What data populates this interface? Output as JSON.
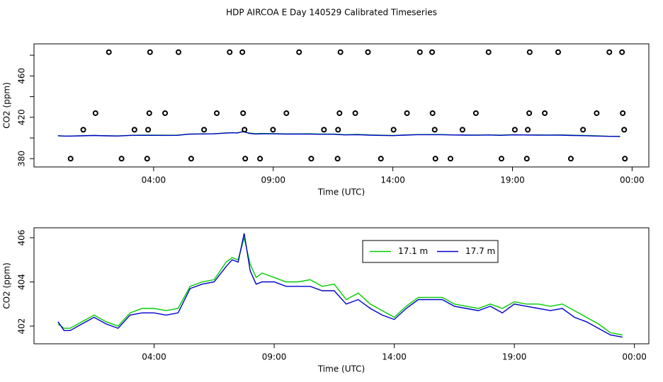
{
  "chart_data": [
    {
      "type": "scatter",
      "title": "HDP AIRCOA E  Day 140529  Calibrated Timeseries",
      "x_label": "Time (UTC)",
      "y_label": "CO2 (ppm)",
      "color": "#000000",
      "x": [
        2.13,
        3.85,
        5.04,
        7.18,
        7.71,
        10.08,
        11.81,
        12.96,
        15.13,
        15.64,
        18.0,
        19.72,
        20.91,
        23.05,
        23.58,
        1.57,
        3.82,
        4.48,
        6.64,
        7.74,
        9.55,
        11.77,
        12.43,
        14.59,
        15.66,
        17.47,
        19.7,
        20.35,
        22.52,
        23.61,
        1.06,
        3.2,
        3.77,
        6.11,
        7.8,
        8.99,
        11.12,
        11.71,
        14.03,
        15.75,
        16.91,
        19.1,
        19.64,
        21.95,
        23.67,
        0.53,
        2.66,
        3.73,
        5.57,
        7.83,
        8.45,
        10.59,
        11.69,
        13.5,
        15.78,
        16.41,
        18.54,
        19.6,
        21.44,
        23.7
      ],
      "values": [
        483,
        483,
        483,
        483,
        483,
        483,
        483,
        483,
        483,
        483,
        483,
        483,
        483,
        483,
        483,
        424,
        424,
        424,
        424,
        424,
        424,
        424,
        424,
        424,
        424,
        424,
        424,
        424,
        424,
        424,
        408,
        408,
        408,
        408,
        408,
        408,
        408,
        408,
        408,
        408,
        408,
        408,
        408,
        408,
        408,
        380,
        380,
        380,
        380,
        380,
        380,
        380,
        380,
        380,
        380,
        380,
        380,
        380,
        380,
        380
      ],
      "xlim": [
        -1.0,
        24.7
      ],
      "ylim": [
        372,
        491
      ],
      "xticks": [
        {
          "value": 4,
          "label": "04:00"
        },
        {
          "value": 9,
          "label": "09:00"
        },
        {
          "value": 14,
          "label": "14:00"
        },
        {
          "value": 19,
          "label": "19:00"
        },
        {
          "value": 24,
          "label": "00:00"
        }
      ],
      "yticks": [
        380,
        420,
        460
      ],
      "yticks_minor": [
        400,
        440,
        480
      ]
    },
    {
      "type": "line",
      "x_label": "Time (UTC)",
      "y_label": "CO2 (ppm)",
      "legend": "top-right",
      "x": [
        0,
        0.25,
        0.5,
        1,
        1.5,
        2,
        2.5,
        3,
        3.5,
        4,
        4.5,
        5,
        5.5,
        6,
        6.5,
        7,
        7.25,
        7.5,
        7.75,
        8,
        8.25,
        8.5,
        9,
        9.5,
        10,
        10.5,
        11,
        11.5,
        12,
        12.5,
        13,
        13.5,
        14,
        14.5,
        15,
        15.5,
        16,
        16.5,
        17,
        17.5,
        18,
        18.5,
        19,
        19.5,
        20,
        20.5,
        21,
        21.5,
        22,
        22.5,
        23,
        23.5
      ],
      "series": [
        {
          "name": "17.1 m",
          "color": "#00cc00",
          "values": [
            402.1,
            401.9,
            401.9,
            402.2,
            402.5,
            402.2,
            402.0,
            402.6,
            402.8,
            402.8,
            402.7,
            402.8,
            403.8,
            404.0,
            404.1,
            404.9,
            405.1,
            405.0,
            406.0,
            404.8,
            404.2,
            404.4,
            404.2,
            404.0,
            404.0,
            404.1,
            403.8,
            403.9,
            403.2,
            403.5,
            403.0,
            402.7,
            402.4,
            402.9,
            403.3,
            403.3,
            403.3,
            403.0,
            402.9,
            402.8,
            403.0,
            402.8,
            403.1,
            403.0,
            403.0,
            402.9,
            403.0,
            402.7,
            402.4,
            402.1,
            401.7,
            401.6
          ]
        },
        {
          "name": "17.7 m",
          "color": "#0000cc",
          "values": [
            402.2,
            401.8,
            401.8,
            402.1,
            402.4,
            402.1,
            401.9,
            402.5,
            402.6,
            402.6,
            402.5,
            402.6,
            403.7,
            403.9,
            404.0,
            404.7,
            405.0,
            404.9,
            406.2,
            404.5,
            403.9,
            404.0,
            404.0,
            403.8,
            403.8,
            403.8,
            403.6,
            403.6,
            403.0,
            403.2,
            402.8,
            402.5,
            402.3,
            402.8,
            403.2,
            403.2,
            403.2,
            402.9,
            402.8,
            402.7,
            402.9,
            402.6,
            403.0,
            402.9,
            402.8,
            402.7,
            402.8,
            402.4,
            402.2,
            401.9,
            401.6,
            401.5
          ]
        }
      ],
      "xlim": [
        -1.0,
        24.6
      ],
      "ylim": [
        401.2,
        406.45
      ],
      "xticks": [
        {
          "value": 4,
          "label": "04:00"
        },
        {
          "value": 9,
          "label": "09:00"
        },
        {
          "value": 14,
          "label": "14:00"
        },
        {
          "value": 19,
          "label": "19:00"
        },
        {
          "value": 24,
          "label": "00:00"
        }
      ],
      "yticks": [
        402,
        404,
        406
      ]
    }
  ]
}
